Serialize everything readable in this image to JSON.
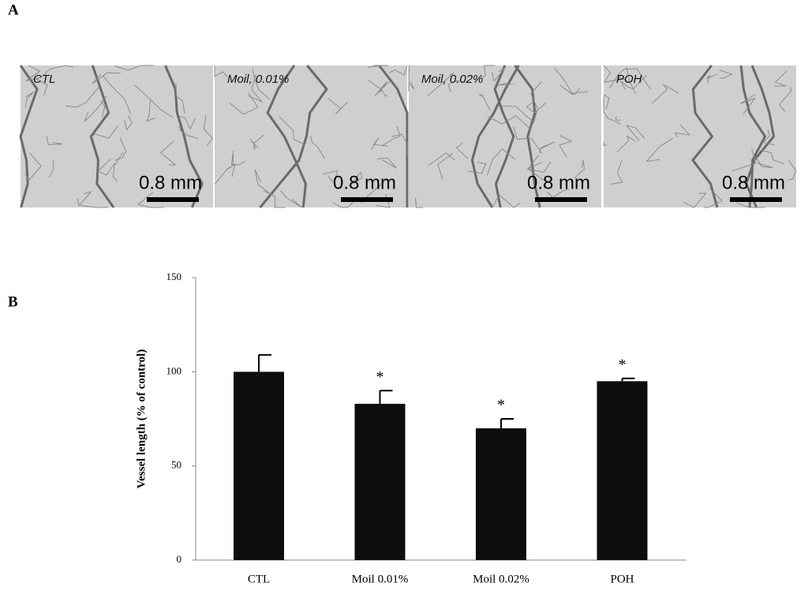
{
  "panels": [
    "A",
    "B"
  ],
  "images": [
    {
      "label": "CTL",
      "scale": "0.8 mm"
    },
    {
      "label": "Moil, 0.01%",
      "scale": "0.8 mm"
    },
    {
      "label": "Moil, 0.02%",
      "scale": "0.8 mm"
    },
    {
      "label": "POH",
      "scale": "0.8 mm"
    }
  ],
  "chart_data": {
    "type": "bar",
    "y_label": "Vessel length (% of control)",
    "categories": [
      "CTL",
      "Moil 0.01%",
      "Moil 0.02%",
      "POH"
    ],
    "values": [
      100,
      83,
      70,
      95
    ],
    "errors": [
      9,
      7,
      5,
      1.5
    ],
    "markers": [
      null,
      "*",
      "*",
      "*"
    ],
    "color": "#0d0d0d",
    "ylim": [
      0,
      150
    ],
    "yticks": [
      0,
      50,
      100,
      150
    ]
  }
}
